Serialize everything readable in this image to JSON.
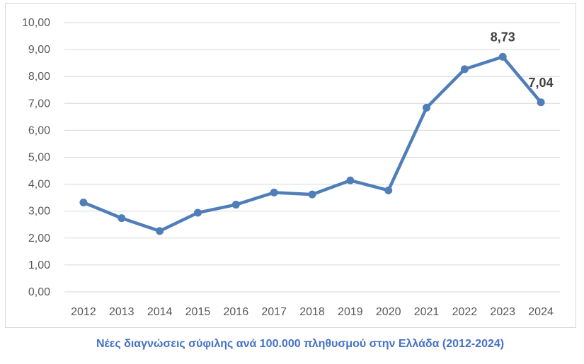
{
  "chart_data": {
    "type": "line",
    "title": "",
    "xlabel": "",
    "ylabel": "",
    "categories": [
      "2012",
      "2013",
      "2014",
      "2015",
      "2016",
      "2017",
      "2018",
      "2019",
      "2020",
      "2021",
      "2022",
      "2023",
      "2024"
    ],
    "series": [
      {
        "values": [
          3.32,
          2.74,
          2.26,
          2.94,
          3.24,
          3.69,
          3.62,
          4.14,
          3.77,
          6.84,
          8.27,
          8.73,
          7.04
        ],
        "color": "#4f7eb8"
      }
    ],
    "data_labels": [
      {
        "index": 11,
        "text": "8,73"
      },
      {
        "index": 12,
        "text": "7,04"
      }
    ],
    "y_tick_labels": [
      "0,00",
      "1,00",
      "2,00",
      "3,00",
      "4,00",
      "5,00",
      "6,00",
      "7,00",
      "8,00",
      "9,00",
      "10,00"
    ],
    "ylim": [
      0,
      10
    ],
    "grid": true,
    "legend": "none"
  },
  "caption": "Νέες διαγνώσεις σύφιλης ανά 100.000 πληθυσμού στην Ελλάδα (2012-2024)"
}
